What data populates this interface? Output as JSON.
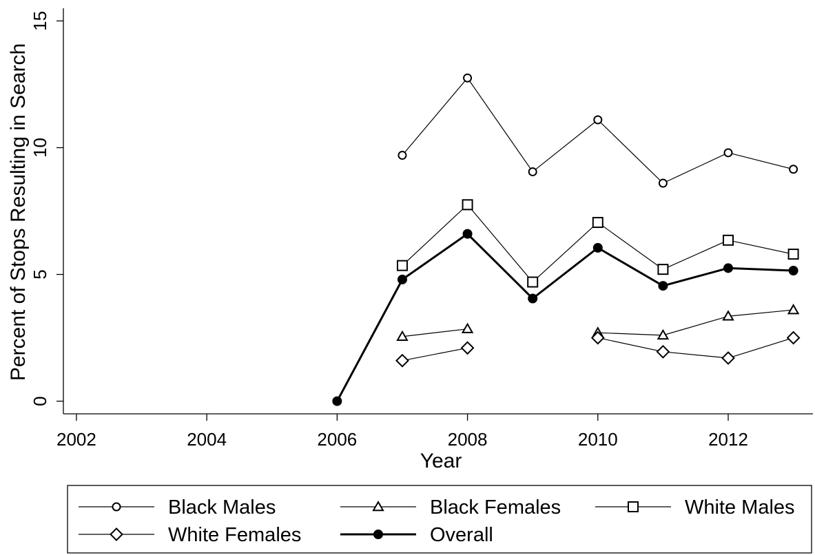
{
  "chart_data": {
    "type": "line",
    "title": "",
    "xlabel": "Year",
    "ylabel": "Percent of Stops Resulting in Search",
    "xlim": [
      2001.8,
      2013.3
    ],
    "ylim": [
      -0.5,
      15.5
    ],
    "xticks": [
      2002,
      2004,
      2006,
      2008,
      2010,
      2012
    ],
    "xtick_labels": [
      "2002",
      "2004",
      "2006",
      "2008",
      "2010",
      "2012"
    ],
    "yticks": [
      0,
      5,
      10,
      15
    ],
    "ytick_labels": [
      "0",
      "5",
      "10",
      "15"
    ],
    "grid": false,
    "legend_position": "bottom",
    "series": [
      {
        "name": "Black Males",
        "marker": "circle",
        "color": "#000000",
        "line_weight": "thin",
        "segments": [
          [
            [
              2007,
              9.7
            ],
            [
              2008,
              12.75
            ],
            [
              2009,
              9.05
            ],
            [
              2010,
              11.1
            ],
            [
              2011,
              8.6
            ],
            [
              2012,
              9.8
            ],
            [
              2013,
              9.15
            ]
          ]
        ]
      },
      {
        "name": "Black Females",
        "marker": "triangle",
        "color": "#000000",
        "line_weight": "thin",
        "segments": [
          [
            [
              2007,
              2.55
            ],
            [
              2008,
              2.85
            ]
          ],
          [
            [
              2010,
              2.7
            ],
            [
              2011,
              2.6
            ],
            [
              2012,
              3.35
            ],
            [
              2013,
              3.6
            ]
          ]
        ]
      },
      {
        "name": "White Males",
        "marker": "square",
        "color": "#000000",
        "line_weight": "thin",
        "segments": [
          [
            [
              2007,
              5.35
            ],
            [
              2008,
              7.75
            ],
            [
              2009,
              4.7
            ],
            [
              2010,
              7.05
            ],
            [
              2011,
              5.2
            ],
            [
              2012,
              6.35
            ],
            [
              2013,
              5.8
            ]
          ]
        ]
      },
      {
        "name": "White Females",
        "marker": "diamond",
        "color": "#000000",
        "line_weight": "thin",
        "segments": [
          [
            [
              2007,
              1.6
            ],
            [
              2008,
              2.1
            ]
          ],
          [
            [
              2010,
              2.5
            ],
            [
              2011,
              1.95
            ],
            [
              2012,
              1.7
            ],
            [
              2013,
              2.5
            ]
          ]
        ]
      },
      {
        "name": "Overall",
        "marker": "filled-circle",
        "color": "#000000",
        "line_weight": "thick",
        "segments": [
          [
            [
              2006,
              0.0
            ],
            [
              2007,
              4.8
            ],
            [
              2008,
              6.6
            ],
            [
              2009,
              4.05
            ],
            [
              2010,
              6.05
            ],
            [
              2011,
              4.55
            ],
            [
              2012,
              5.25
            ],
            [
              2013,
              5.15
            ]
          ]
        ]
      }
    ]
  }
}
